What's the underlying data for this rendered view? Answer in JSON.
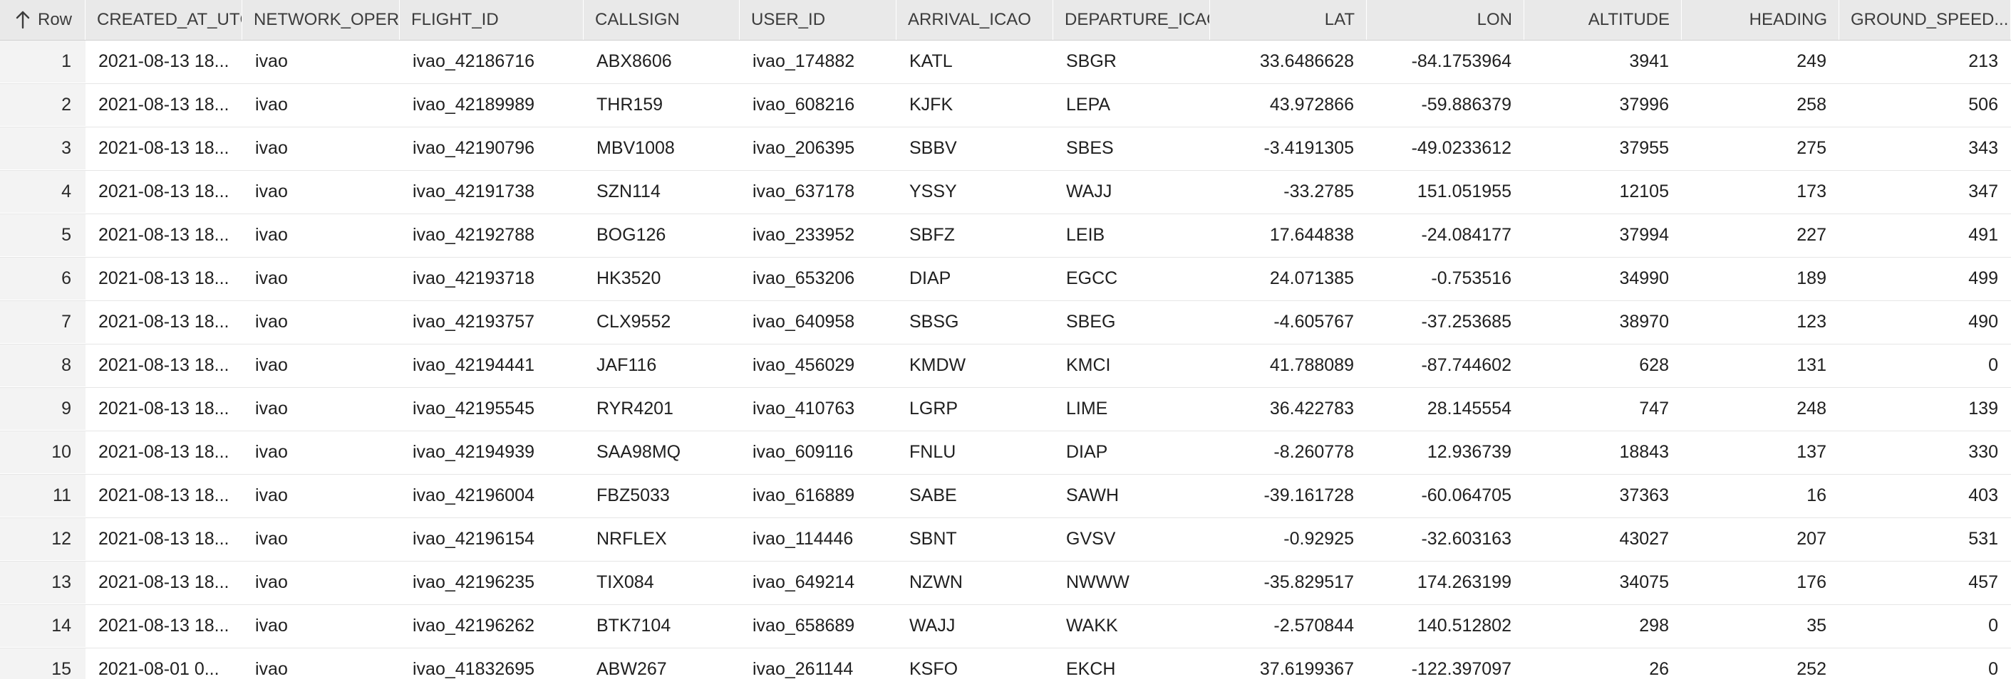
{
  "table": {
    "row_header_label": "Row",
    "sort_icon": "arrow-up-icon",
    "columns": [
      "CREATED_AT_UTC",
      "NETWORK_OPERATOR",
      "FLIGHT_ID",
      "CALLSIGN",
      "USER_ID",
      "ARRIVAL_ICAO",
      "DEPARTURE_ICAO",
      "LAT",
      "LON",
      "ALTITUDE",
      "HEADING",
      "GROUND_SPEED..."
    ],
    "rows": [
      {
        "row": "1",
        "cells": [
          "2021-08-13 18...",
          "ivao",
          "ivao_42186716",
          "ABX8606",
          "ivao_174882",
          "KATL",
          "SBGR",
          "33.6486628",
          "-84.1753964",
          "3941",
          "249",
          "213"
        ]
      },
      {
        "row": "2",
        "cells": [
          "2021-08-13 18...",
          "ivao",
          "ivao_42189989",
          "THR159",
          "ivao_608216",
          "KJFK",
          "LEPA",
          "43.972866",
          "-59.886379",
          "37996",
          "258",
          "506"
        ]
      },
      {
        "row": "3",
        "cells": [
          "2021-08-13 18...",
          "ivao",
          "ivao_42190796",
          "MBV1008",
          "ivao_206395",
          "SBBV",
          "SBES",
          "-3.4191305",
          "-49.0233612",
          "37955",
          "275",
          "343"
        ]
      },
      {
        "row": "4",
        "cells": [
          "2021-08-13 18...",
          "ivao",
          "ivao_42191738",
          "SZN114",
          "ivao_637178",
          "YSSY",
          "WAJJ",
          "-33.2785",
          "151.051955",
          "12105",
          "173",
          "347"
        ]
      },
      {
        "row": "5",
        "cells": [
          "2021-08-13 18...",
          "ivao",
          "ivao_42192788",
          "BOG126",
          "ivao_233952",
          "SBFZ",
          "LEIB",
          "17.644838",
          "-24.084177",
          "37994",
          "227",
          "491"
        ]
      },
      {
        "row": "6",
        "cells": [
          "2021-08-13 18...",
          "ivao",
          "ivao_42193718",
          "HK3520",
          "ivao_653206",
          "DIAP",
          "EGCC",
          "24.071385",
          "-0.753516",
          "34990",
          "189",
          "499"
        ]
      },
      {
        "row": "7",
        "cells": [
          "2021-08-13 18...",
          "ivao",
          "ivao_42193757",
          "CLX9552",
          "ivao_640958",
          "SBSG",
          "SBEG",
          "-4.605767",
          "-37.253685",
          "38970",
          "123",
          "490"
        ]
      },
      {
        "row": "8",
        "cells": [
          "2021-08-13 18...",
          "ivao",
          "ivao_42194441",
          "JAF116",
          "ivao_456029",
          "KMDW",
          "KMCI",
          "41.788089",
          "-87.744602",
          "628",
          "131",
          "0"
        ]
      },
      {
        "row": "9",
        "cells": [
          "2021-08-13 18...",
          "ivao",
          "ivao_42195545",
          "RYR4201",
          "ivao_410763",
          "LGRP",
          "LIME",
          "36.422783",
          "28.145554",
          "747",
          "248",
          "139"
        ]
      },
      {
        "row": "10",
        "cells": [
          "2021-08-13 18...",
          "ivao",
          "ivao_42194939",
          "SAA98MQ",
          "ivao_609116",
          "FNLU",
          "DIAP",
          "-8.260778",
          "12.936739",
          "18843",
          "137",
          "330"
        ]
      },
      {
        "row": "11",
        "cells": [
          "2021-08-13 18...",
          "ivao",
          "ivao_42196004",
          "FBZ5033",
          "ivao_616889",
          "SABE",
          "SAWH",
          "-39.161728",
          "-60.064705",
          "37363",
          "16",
          "403"
        ]
      },
      {
        "row": "12",
        "cells": [
          "2021-08-13 18...",
          "ivao",
          "ivao_42196154",
          "NRFLEX",
          "ivao_114446",
          "SBNT",
          "GVSV",
          "-0.92925",
          "-32.603163",
          "43027",
          "207",
          "531"
        ]
      },
      {
        "row": "13",
        "cells": [
          "2021-08-13 18...",
          "ivao",
          "ivao_42196235",
          "TIX084",
          "ivao_649214",
          "NZWN",
          "NWWW",
          "-35.829517",
          "174.263199",
          "34075",
          "176",
          "457"
        ]
      },
      {
        "row": "14",
        "cells": [
          "2021-08-13 18...",
          "ivao",
          "ivao_42196262",
          "BTK7104",
          "ivao_658689",
          "WAJJ",
          "WAKK",
          "-2.570844",
          "140.512802",
          "298",
          "35",
          "0"
        ]
      },
      {
        "row": "15",
        "cells": [
          "2021-08-01 0...",
          "ivao",
          "ivao_41832695",
          "ABW267",
          "ivao_261144",
          "KSFO",
          "EKCH",
          "37.6199367",
          "-122.397097",
          "26",
          "252",
          "0"
        ]
      }
    ]
  }
}
